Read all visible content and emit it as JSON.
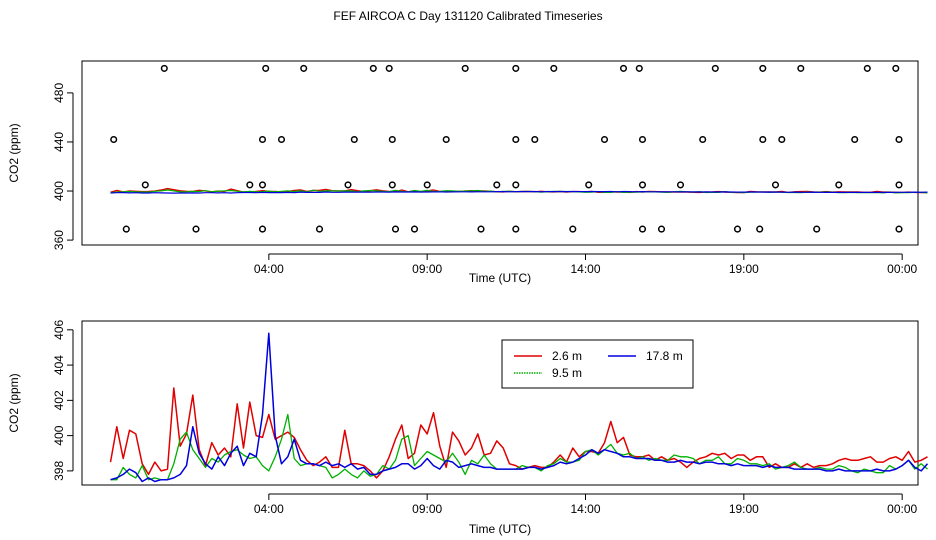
{
  "title": "FEF AIRCOA C  Day 131120  Calibrated Timeseries",
  "colors": {
    "h26": "#e00000",
    "h95": "#00b000",
    "h178": "#0000dd",
    "axis": "#000000"
  },
  "chart_data": [
    {
      "type": "scatter",
      "xlabel": "Time (UTC)",
      "ylabel": "CO2 (ppm)",
      "xlim": [
        -1.9,
        24.5
      ],
      "ylim": [
        356,
        506
      ],
      "x_ticks": [
        4,
        9,
        14,
        19,
        24
      ],
      "x_tick_labels": [
        "04:00",
        "09:00",
        "14:00",
        "19:00",
        "00:00"
      ],
      "y_ticks": [
        360,
        400,
        440,
        480
      ],
      "y_tick_labels": [
        "360",
        "400",
        "440",
        "480"
      ],
      "points": {
        "levels": [
          369,
          405,
          442,
          500
        ],
        "x": [
          [
            -0.5,
            1.7,
            3.8,
            5.6,
            8.0,
            8.6,
            10.7,
            11.8,
            13.6,
            15.8,
            16.4,
            18.8,
            19.5,
            21.3,
            23.9
          ],
          [
            0.1,
            3.4,
            3.8,
            6.5,
            7.9,
            9.0,
            11.2,
            11.8,
            14.1,
            15.8,
            17.0,
            20.0,
            22.0,
            23.9
          ],
          [
            -0.9,
            3.8,
            4.4,
            6.7,
            7.9,
            9.6,
            11.8,
            12.4,
            14.6,
            15.8,
            17.7,
            19.6,
            20.2,
            22.5,
            23.9
          ],
          [
            0.7,
            3.9,
            5.1,
            7.3,
            7.8,
            10.2,
            11.8,
            13.0,
            15.2,
            15.7,
            18.1,
            19.6,
            20.8,
            22.9,
            23.8
          ]
        ]
      },
      "series": [
        {
          "x_start": -1.0,
          "x_step": 0.2,
          "values": [
            399.0,
            400.5,
            399.3,
            400.0,
            399.8,
            399.5,
            399.6,
            399.9,
            400.8,
            402.0,
            401.1,
            400.2,
            399.8,
            399.7,
            400.6,
            400.1,
            399.4,
            399.9,
            399.7,
            401.6,
            400.3,
            399.2,
            399.4,
            399.6,
            400.3,
            399.8,
            399.6,
            399.2,
            399.7,
            400.4,
            400.9,
            399.7,
            400.4,
            400.6,
            401.3,
            400.3,
            400.0,
            400.1,
            401.2,
            400.3,
            399.7,
            400.3,
            401.0,
            400.2,
            399.7,
            399.4,
            400.8,
            399.4,
            400.3,
            399.2,
            400.1,
            400.8,
            399.7,
            399.6,
            399.8,
            399.6,
            399.9,
            400.3,
            400.0,
            400.1,
            399.8,
            399.4,
            399.3,
            399.8,
            399.4,
            399.6,
            399.7,
            399.4,
            399.8,
            399.4,
            399.3,
            399.6,
            399.1,
            399.5,
            399.5,
            399.4,
            399.7,
            399.0,
            399.0,
            399.4,
            399.1,
            399.3,
            398.9,
            399.5,
            399.2,
            399.6,
            399.5,
            399.4,
            399.2,
            399.2,
            399.2,
            399.2,
            399.0,
            398.9,
            399.1,
            399.2,
            399.5,
            399.2,
            399.0,
            398.8,
            398.7,
            399.6,
            399.4,
            399.3,
            399.3,
            399.2,
            399.7,
            398.9,
            399.4,
            399.5,
            399.6,
            399.3,
            399.1,
            399.5,
            399.1,
            399.4,
            399.2,
            399.2,
            399.2,
            399.0,
            399.0,
            399.6,
            399.1,
            399.1,
            399.0,
            398.9,
            399.1,
            398.9,
            398.8,
            398.9
          ]
        },
        {
          "x_start": -1.0,
          "x_step": 0.2,
          "values": [
            398.6,
            399.1,
            399.3,
            399.6,
            399.4,
            399.2,
            399.1,
            399.8,
            400.1,
            400.8,
            400.1,
            399.3,
            399.4,
            399.7,
            399.6,
            400.3,
            399.4,
            399.9,
            400.1,
            400.4,
            399.8,
            399.2,
            399.8,
            399.4,
            399.5,
            399.9,
            399.4,
            399.8,
            400.1,
            399.6,
            400.1,
            399.4,
            400.7,
            399.8,
            400.2,
            400.1,
            400.0,
            400.2,
            400.1,
            399.3,
            400.1,
            400.4,
            400.1,
            399.7,
            399.5,
            400.6,
            399.6,
            399.4,
            400.4,
            399.8,
            400.5,
            399.6,
            399.8,
            400.3,
            400.1,
            399.7,
            400.0,
            400.1,
            400.4,
            399.7,
            399.9,
            399.4,
            399.7,
            399.7,
            399.5,
            399.6,
            399.8,
            399.5,
            399.1,
            399.4,
            399.7,
            399.6,
            399.6,
            399.5,
            399.3,
            399.0,
            399.1,
            399.6,
            398.9,
            398.9,
            399.5,
            398.9,
            399.0,
            399.1,
            399.3,
            399.3,
            399.3,
            399.1,
            398.9,
            399.4,
            399.7,
            399.4,
            399.1,
            399.5,
            398.8,
            398.9,
            398.9,
            399.5,
            399.0,
            399.1,
            398.6,
            399.1,
            399.1,
            399.4,
            398.9,
            399.3,
            399.0,
            398.8,
            398.8,
            398.6,
            399.1,
            398.9,
            399.1,
            399.2,
            399.1,
            398.6,
            398.7,
            398.9,
            398.7,
            398.7,
            398.6,
            398.8,
            398.5,
            399.1,
            398.5,
            398.7,
            398.7,
            399.0,
            398.9,
            398.5
          ]
        },
        {
          "x_start": -1.0,
          "x_step": 0.2,
          "values": [
            398.4,
            398.6,
            398.7,
            398.5,
            398.6,
            398.4,
            398.4,
            398.6,
            398.5,
            398.4,
            398.3,
            398.4,
            398.4,
            398.5,
            398.4,
            398.6,
            398.6,
            398.5,
            398.6,
            398.4,
            398.6,
            398.8,
            398.8,
            398.6,
            398.9,
            398.7,
            398.7,
            398.7,
            398.9,
            398.7,
            399.1,
            398.9,
            399.0,
            398.9,
            399.2,
            399.0,
            399.0,
            399.1,
            399.1,
            399.1,
            399.1,
            399.1,
            399.2,
            399.2,
            399.1,
            399.3,
            399.2,
            399.2,
            399.3,
            399.2,
            399.2,
            399.3,
            399.4,
            399.2,
            399.3,
            399.4,
            399.4,
            399.3,
            399.4,
            399.4,
            399.4,
            399.5,
            399.5,
            399.4,
            399.5,
            399.5,
            399.5,
            399.6,
            399.4,
            399.6,
            399.5,
            399.6,
            399.5,
            399.6,
            399.5,
            399.5,
            399.6,
            399.5,
            399.5,
            399.6,
            399.4,
            399.6,
            399.5,
            399.4,
            399.5,
            399.4,
            399.4,
            399.3,
            399.4,
            399.4,
            399.3,
            399.3,
            399.3,
            399.2,
            399.3,
            399.2,
            399.2,
            399.3,
            399.2,
            399.1,
            399.1,
            399.2,
            399.2,
            399.1,
            399.2,
            399.1,
            399.1,
            399.0,
            399.1,
            399.0,
            399.0,
            399.1,
            399.0,
            398.9,
            398.9,
            399.0,
            398.9,
            398.9,
            399.0,
            398.9,
            398.9,
            399.0,
            398.9,
            398.9,
            399.0,
            399.0,
            399.0,
            399.1,
            399.0,
            399.1
          ]
        }
      ]
    },
    {
      "type": "line",
      "xlabel": "Time (UTC)",
      "ylabel": "CO2 (ppm)",
      "xlim": [
        -1.9,
        24.5
      ],
      "ylim": [
        397.2,
        406.5
      ],
      "x_ticks": [
        4,
        9,
        14,
        19,
        24
      ],
      "x_tick_labels": [
        "04:00",
        "09:00",
        "14:00",
        "19:00",
        "00:00"
      ],
      "y_ticks": [
        398,
        400,
        402,
        404,
        406
      ],
      "y_tick_labels": [
        "398",
        "400",
        "402",
        "404",
        "406"
      ],
      "legend": {
        "placement": "top-center",
        "entries": [
          "2.6 m",
          "9.5 m",
          "17.8 m"
        ]
      },
      "series": [
        {
          "name": "2.6 m",
          "x_start": -1.0,
          "x_step": 0.2,
          "values": [
            398.5,
            400.5,
            398.7,
            400.3,
            400.1,
            398.4,
            397.8,
            398.5,
            398.0,
            398.1,
            402.7,
            399.4,
            400.1,
            402.3,
            399.2,
            398.3,
            399.6,
            398.9,
            399.3,
            398.8,
            401.8,
            399.3,
            401.9,
            400.0,
            399.9,
            401.2,
            399.8,
            400.0,
            400.2,
            399.9,
            399.2,
            398.6,
            398.3,
            398.5,
            398.8,
            398.2,
            398.2,
            400.3,
            398.4,
            398.4,
            398.3,
            398.0,
            397.6,
            398.0,
            398.8,
            399.8,
            400.6,
            398.7,
            399.0,
            400.6,
            400.1,
            401.3,
            399.4,
            398.2,
            400.2,
            399.7,
            398.9,
            399.3,
            400.1,
            398.9,
            399.0,
            399.7,
            399.3,
            398.4,
            398.3,
            398.1,
            398.2,
            398.3,
            398.2,
            398.2,
            398.5,
            398.9,
            398.5,
            399.3,
            398.8,
            399.1,
            399.1,
            399.0,
            399.6,
            400.8,
            399.6,
            399.9,
            398.9,
            398.8,
            398.8,
            398.9,
            398.6,
            398.8,
            398.6,
            398.7,
            398.5,
            398.2,
            398.5,
            398.7,
            398.8,
            399.0,
            398.9,
            399.0,
            398.7,
            398.9,
            398.9,
            398.6,
            398.8,
            398.8,
            398.2,
            398.4,
            398.2,
            398.2,
            398.4,
            398.2,
            398.4,
            398.2,
            398.3,
            398.3,
            398.4,
            398.6,
            398.7,
            398.6,
            398.6,
            398.7,
            398.8,
            398.5,
            398.5,
            398.7,
            398.8,
            398.6,
            399.1,
            398.5,
            398.6,
            398.8
          ]
        },
        {
          "name": "9.5 m",
          "x_start": -1.0,
          "x_step": 0.2,
          "values": [
            397.5,
            397.5,
            398.2,
            397.8,
            397.6,
            398.3,
            397.5,
            397.6,
            397.5,
            397.5,
            398.4,
            399.8,
            400.2,
            399.2,
            398.7,
            398.2,
            398.7,
            398.5,
            398.9,
            399.1,
            399.2,
            398.9,
            398.7,
            398.8,
            398.3,
            398.0,
            398.8,
            399.8,
            401.2,
            398.7,
            398.3,
            398.4,
            398.4,
            398.3,
            398.2,
            397.6,
            397.8,
            398.1,
            397.8,
            397.6,
            398.0,
            397.7,
            397.8,
            398.3,
            398.1,
            398.6,
            399.8,
            400.0,
            398.3,
            398.7,
            399.1,
            398.9,
            398.7,
            398.5,
            399.0,
            398.5,
            397.8,
            398.6,
            398.4,
            398.9,
            398.4,
            398.1,
            398.1,
            398.1,
            398.1,
            398.3,
            398.2,
            398.2,
            398.0,
            398.3,
            398.4,
            398.7,
            398.5,
            398.5,
            398.6,
            399.1,
            399.2,
            398.9,
            399.2,
            399.5,
            399.0,
            398.9,
            399.0,
            398.7,
            398.8,
            398.6,
            398.7,
            398.6,
            398.6,
            398.9,
            398.8,
            398.8,
            398.7,
            398.4,
            398.6,
            398.6,
            398.8,
            398.4,
            398.4,
            398.7,
            398.6,
            398.4,
            398.4,
            398.3,
            398.4,
            398.1,
            398.2,
            398.3,
            398.5,
            398.2,
            398.1,
            398.1,
            398.2,
            398.1,
            398.1,
            398.3,
            398.2,
            398.0,
            397.9,
            398.1,
            398.0,
            397.9,
            397.9,
            398.3,
            398.1,
            398.3,
            398.6,
            398.1,
            398.4,
            398.1
          ]
        },
        {
          "name": "17.8 m",
          "x_start": -1.0,
          "x_step": 0.2,
          "values": [
            397.5,
            397.6,
            397.8,
            398.1,
            397.9,
            397.4,
            397.6,
            397.4,
            397.5,
            397.5,
            397.6,
            397.8,
            398.3,
            400.5,
            399.0,
            398.4,
            398.1,
            398.8,
            398.3,
            399.0,
            399.4,
            398.3,
            399.0,
            398.8,
            401.2,
            405.8,
            400.0,
            398.4,
            398.8,
            399.8,
            398.6,
            398.4,
            398.4,
            398.3,
            398.5,
            398.3,
            398.4,
            398.2,
            398.4,
            398.1,
            398.2,
            397.8,
            397.8,
            398.0,
            398.1,
            398.2,
            398.4,
            398.4,
            398.1,
            398.3,
            398.7,
            398.3,
            398.1,
            398.6,
            398.5,
            398.2,
            398.3,
            398.4,
            398.3,
            398.2,
            398.2,
            398.1,
            398.1,
            398.1,
            398.1,
            398.1,
            398.2,
            398.2,
            398.1,
            398.2,
            398.3,
            398.5,
            398.4,
            398.5,
            398.7,
            398.9,
            399.2,
            399.0,
            399.2,
            399.1,
            399.0,
            398.8,
            398.8,
            398.7,
            398.7,
            398.7,
            398.6,
            398.6,
            398.5,
            398.5,
            398.6,
            398.5,
            398.5,
            398.4,
            398.5,
            398.5,
            398.4,
            398.4,
            398.3,
            398.4,
            398.3,
            398.3,
            398.3,
            398.2,
            398.3,
            398.2,
            398.2,
            398.2,
            398.1,
            398.1,
            398.1,
            398.1,
            398.1,
            398.0,
            398.0,
            398.1,
            398.0,
            398.0,
            398.0,
            398.0,
            398.0,
            398.1,
            398.0,
            398.0,
            398.1,
            398.3,
            398.6,
            398.2,
            398.0,
            398.4
          ]
        }
      ]
    }
  ]
}
